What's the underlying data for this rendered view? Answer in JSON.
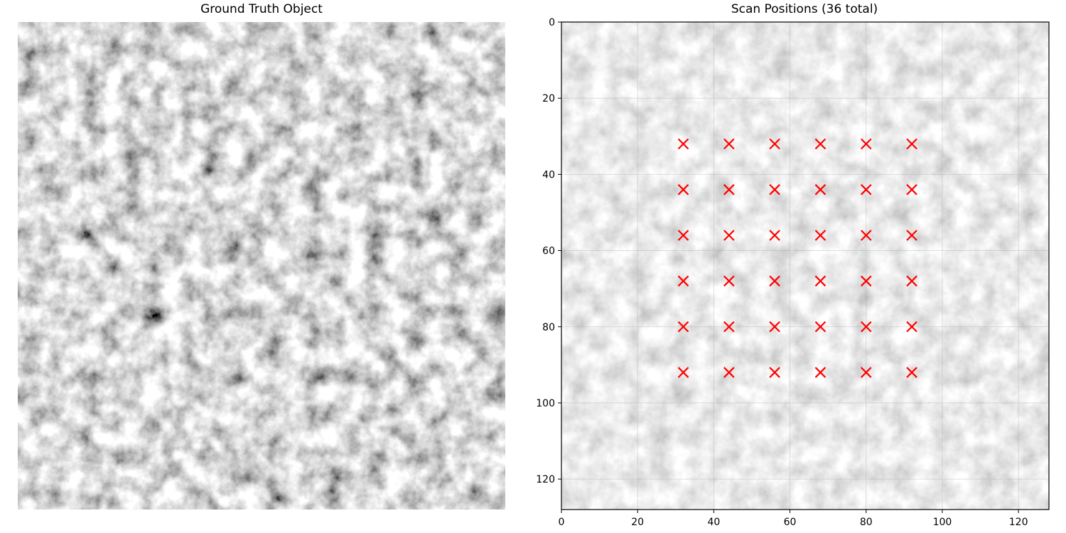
{
  "panels": [
    {
      "title": "Ground Truth Object",
      "image": "grayscale-object-texture"
    },
    {
      "title": "Scan Positions (36 total)",
      "image": "faded-grayscale-object-texture"
    }
  ],
  "colors": {
    "marker": "#ff0000",
    "grid": "#b0b0b0"
  },
  "chart_data": [
    {
      "type": "image",
      "title": "Ground Truth Object",
      "colormap": "gray",
      "axes_visible": false
    },
    {
      "type": "scatter",
      "title": "Scan Positions (36 total)",
      "xlabel": "",
      "ylabel": "",
      "xlim": [
        0,
        128
      ],
      "ylim": [
        128,
        0
      ],
      "grid": true,
      "background": "faded grayscale object image",
      "marker": "x",
      "marker_color": "#ff0000",
      "xticks": [
        0,
        20,
        40,
        60,
        80,
        100,
        120
      ],
      "yticks": [
        0,
        20,
        40,
        60,
        80,
        100,
        120
      ],
      "xtick_labels": [
        "0",
        "20",
        "40",
        "60",
        "80",
        "100",
        "120"
      ],
      "ytick_labels": [
        "0",
        "20",
        "40",
        "60",
        "80",
        "100",
        "120"
      ],
      "points": [
        [
          32,
          32
        ],
        [
          44,
          32
        ],
        [
          56,
          32
        ],
        [
          68,
          32
        ],
        [
          80,
          32
        ],
        [
          92,
          32
        ],
        [
          32,
          44
        ],
        [
          44,
          44
        ],
        [
          56,
          44
        ],
        [
          68,
          44
        ],
        [
          80,
          44
        ],
        [
          92,
          44
        ],
        [
          32,
          56
        ],
        [
          44,
          56
        ],
        [
          56,
          56
        ],
        [
          68,
          56
        ],
        [
          80,
          56
        ],
        [
          92,
          56
        ],
        [
          32,
          68
        ],
        [
          44,
          68
        ],
        [
          56,
          68
        ],
        [
          68,
          68
        ],
        [
          80,
          68
        ],
        [
          92,
          68
        ],
        [
          32,
          80
        ],
        [
          44,
          80
        ],
        [
          56,
          80
        ],
        [
          68,
          80
        ],
        [
          80,
          80
        ],
        [
          92,
          80
        ],
        [
          32,
          92
        ],
        [
          44,
          92
        ],
        [
          56,
          92
        ],
        [
          68,
          92
        ],
        [
          80,
          92
        ],
        [
          92,
          92
        ]
      ]
    }
  ]
}
